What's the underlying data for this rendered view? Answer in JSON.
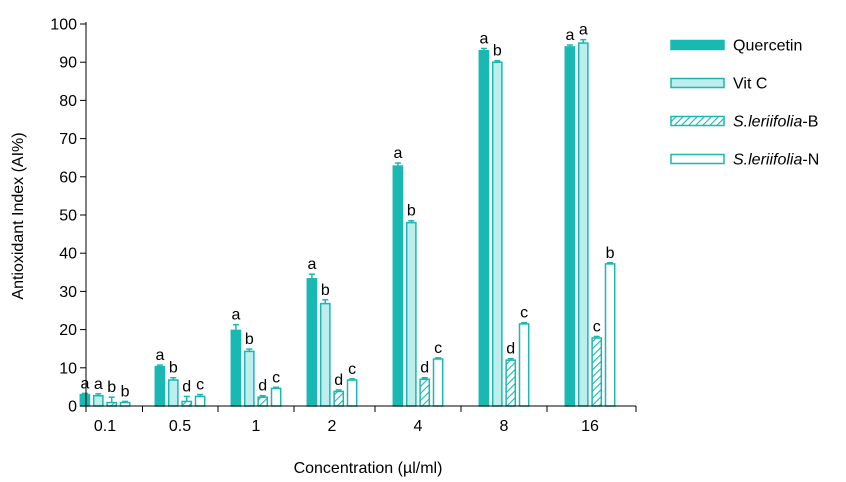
{
  "chart_data": {
    "type": "bar",
    "xlabel": "Concentration (µl/ml)",
    "ylabel": "Antioxidant Index (AI%)",
    "ylim": [
      0,
      100
    ],
    "yticks": [
      0,
      10,
      20,
      30,
      40,
      50,
      60,
      70,
      80,
      90,
      100
    ],
    "categories": [
      "0.1",
      "0.5",
      "1",
      "2",
      "4",
      "8",
      "16"
    ],
    "grid": false,
    "legend_position": "top-right",
    "series": [
      {
        "name": "Quercetin",
        "legend_parts": [
          {
            "text": "Quercetin",
            "italic": false
          }
        ],
        "fill": "solid",
        "color": "#1ab8b3",
        "values": [
          3.0,
          10.3,
          19.8,
          33.3,
          62.8,
          93.0,
          94.0
        ],
        "errors": [
          0.3,
          0.4,
          1.5,
          1.2,
          0.8,
          0.6,
          0.5
        ],
        "labels": [
          "a",
          "a",
          "a",
          "a",
          "a",
          "a",
          "a"
        ]
      },
      {
        "name": "Vit C",
        "legend_parts": [
          {
            "text": "Vit C",
            "italic": false
          }
        ],
        "fill": "light",
        "color": "#1ab8b3",
        "values": [
          2.7,
          6.8,
          14.3,
          26.8,
          48.0,
          90.0,
          95.0
        ],
        "errors": [
          0.5,
          0.6,
          0.6,
          1.0,
          0.5,
          0.4,
          0.9
        ],
        "labels": [
          "a",
          "b",
          "b",
          "b",
          "b",
          "b",
          "a"
        ]
      },
      {
        "name": "S.leriifolia-B",
        "legend_parts": [
          {
            "text": "S.leriifolia",
            "italic": true
          },
          {
            "text": "-B",
            "italic": false
          }
        ],
        "fill": "hatch",
        "color": "#1ab8b3",
        "values": [
          0.9,
          1.2,
          2.3,
          3.8,
          7.0,
          12.0,
          17.8
        ],
        "errors": [
          1.4,
          1.3,
          0.4,
          0.4,
          0.4,
          0.4,
          0.4
        ],
        "labels": [
          "b",
          "d",
          "d",
          "d",
          "d",
          "d",
          "c"
        ]
      },
      {
        "name": "S.leriifolia-N",
        "legend_parts": [
          {
            "text": "S.leriifolia",
            "italic": true
          },
          {
            "text": "-N",
            "italic": false
          }
        ],
        "fill": "white",
        "color": "#1ab8b3",
        "values": [
          0.9,
          2.5,
          4.6,
          6.8,
          12.3,
          21.5,
          37.2
        ],
        "errors": [
          0.3,
          0.5,
          0.3,
          0.3,
          0.3,
          0.3,
          0.3
        ],
        "labels": [
          "b",
          "c",
          "c",
          "c",
          "c",
          "c",
          "b"
        ]
      }
    ]
  }
}
